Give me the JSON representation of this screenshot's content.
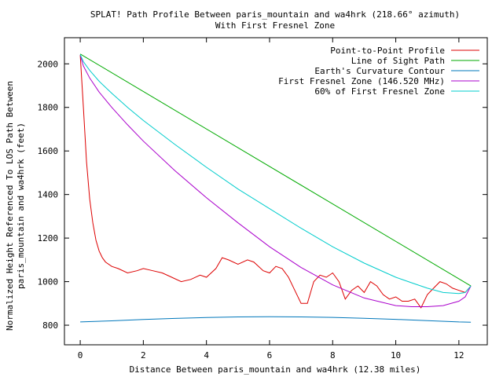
{
  "chart_data": {
    "type": "line",
    "title": "SPLAT! Path Profile Between paris_mountain and wa4hrk (218.66° azimuth)",
    "subtitle": "With First Fresnel Zone",
    "xlabel": "Distance Between paris_mountain and wa4hrk (12.38 miles)",
    "ylabel_lines": [
      "Normalized Height Referenced To LOS Path Between",
      "paris_mountain and wa4hrk (feet)"
    ],
    "xlim": [
      -0.5,
      12.9
    ],
    "ylim": [
      710,
      2120
    ],
    "xticks": [
      0,
      2,
      4,
      6,
      8,
      10,
      12
    ],
    "yticks": [
      800,
      1000,
      1200,
      1400,
      1600,
      1800,
      2000
    ],
    "grid": false,
    "legend_position": "top-right",
    "series": [
      {
        "name": "Point-to-Point Profile",
        "color": "#dd0000",
        "x": [
          0.0,
          0.1,
          0.2,
          0.3,
          0.4,
          0.5,
          0.6,
          0.7,
          0.8,
          1.0,
          1.2,
          1.5,
          1.8,
          2.0,
          2.3,
          2.6,
          2.9,
          3.2,
          3.5,
          3.8,
          4.0,
          4.3,
          4.5,
          4.7,
          5.0,
          5.3,
          5.5,
          5.8,
          6.0,
          6.2,
          6.4,
          6.6,
          6.8,
          7.0,
          7.2,
          7.4,
          7.6,
          7.8,
          8.0,
          8.2,
          8.4,
          8.6,
          8.8,
          9.0,
          9.2,
          9.4,
          9.6,
          9.8,
          10.0,
          10.2,
          10.4,
          10.6,
          10.8,
          11.0,
          11.2,
          11.4,
          11.6,
          11.8,
          12.0,
          12.2,
          12.38
        ],
        "y": [
          2040,
          1800,
          1550,
          1380,
          1270,
          1190,
          1140,
          1110,
          1090,
          1070,
          1060,
          1040,
          1050,
          1060,
          1050,
          1040,
          1020,
          1000,
          1010,
          1030,
          1020,
          1060,
          1110,
          1100,
          1080,
          1100,
          1090,
          1050,
          1040,
          1070,
          1060,
          1020,
          960,
          900,
          900,
          1000,
          1030,
          1020,
          1040,
          1000,
          920,
          960,
          980,
          950,
          1000,
          980,
          940,
          920,
          930,
          910,
          910,
          920,
          880,
          940,
          970,
          1000,
          990,
          970,
          960,
          950,
          980
        ]
      },
      {
        "name": "Line of Sight Path",
        "color": "#00aa00",
        "x": [
          0.0,
          12.38
        ],
        "y": [
          2045,
          980
        ]
      },
      {
        "name": "Earth's Curvature Contour",
        "color": "#0077bb",
        "x": [
          0.0,
          1.0,
          2.0,
          3.0,
          4.0,
          5.0,
          6.0,
          7.0,
          8.0,
          9.0,
          10.0,
          11.0,
          12.0,
          12.38
        ],
        "y": [
          815,
          820,
          826,
          831,
          835,
          838,
          839,
          838,
          836,
          832,
          827,
          821,
          815,
          814
        ]
      },
      {
        "name": "First Fresnel Zone (146.520 MHz)",
        "color": "#aa00cc",
        "x": [
          0.0,
          0.1,
          0.3,
          0.6,
          1.0,
          1.5,
          2.0,
          3.0,
          4.0,
          5.0,
          6.0,
          7.0,
          8.0,
          9.0,
          10.0,
          10.5,
          11.0,
          11.5,
          12.0,
          12.2,
          12.38
        ],
        "y": [
          2040,
          1990,
          1935,
          1870,
          1800,
          1720,
          1645,
          1510,
          1385,
          1270,
          1160,
          1065,
          985,
          925,
          890,
          885,
          885,
          890,
          910,
          930,
          980
        ]
      },
      {
        "name": "60% of First Fresnel Zone",
        "color": "#00cccc",
        "x": [
          0.0,
          0.1,
          0.3,
          0.6,
          1.0,
          1.5,
          2.0,
          3.0,
          4.0,
          5.0,
          6.0,
          7.0,
          8.0,
          9.0,
          10.0,
          10.5,
          11.0,
          11.5,
          12.0,
          12.2,
          12.38
        ],
        "y": [
          2042,
          2010,
          1970,
          1920,
          1865,
          1800,
          1740,
          1630,
          1525,
          1425,
          1335,
          1245,
          1160,
          1085,
          1020,
          995,
          970,
          950,
          945,
          950,
          980
        ]
      }
    ]
  }
}
